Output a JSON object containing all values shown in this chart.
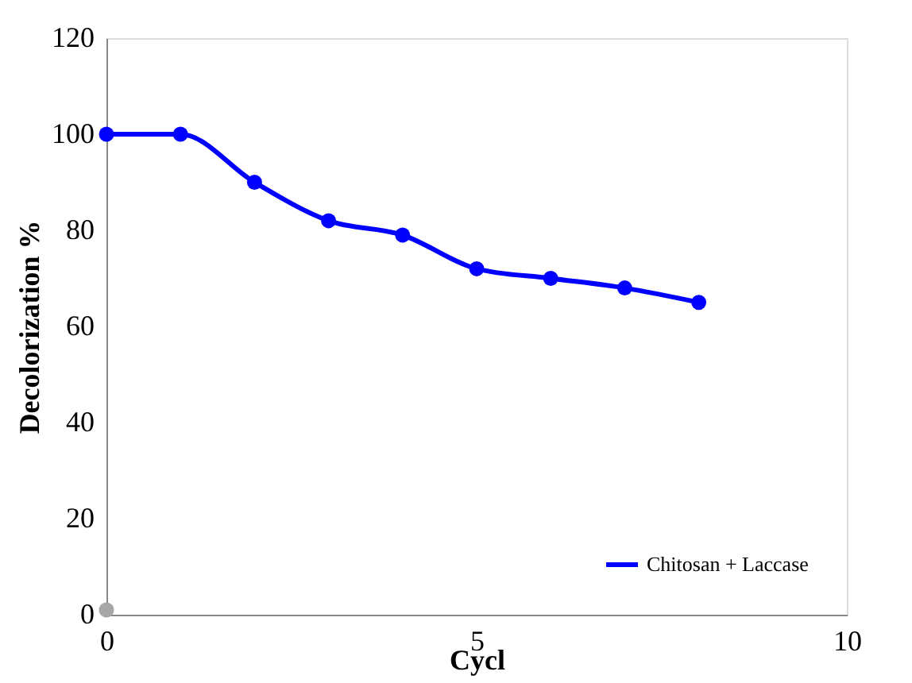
{
  "chart_data": {
    "type": "line",
    "xlabel": "Cycl",
    "ylabel": "Decolorization %",
    "xlim": [
      0,
      10
    ],
    "xticks": [
      0,
      5,
      10
    ],
    "ylim": [
      0,
      120
    ],
    "yticks": [
      0,
      20,
      40,
      60,
      80,
      100,
      120
    ],
    "series": [
      {
        "name": "Chitosan + Laccase",
        "color": "#0000ff",
        "x": [
          0,
          1,
          2,
          3,
          4,
          5,
          6,
          7,
          8
        ],
        "values": [
          100,
          100,
          90,
          82,
          79,
          72,
          70,
          68,
          65
        ]
      },
      {
        "type": "scatter",
        "color": "#a6a6a6",
        "x": [
          0
        ],
        "values": [
          1
        ]
      }
    ],
    "marker": "circle",
    "line_style": "solid",
    "grid": false,
    "legend": "bottom right"
  }
}
